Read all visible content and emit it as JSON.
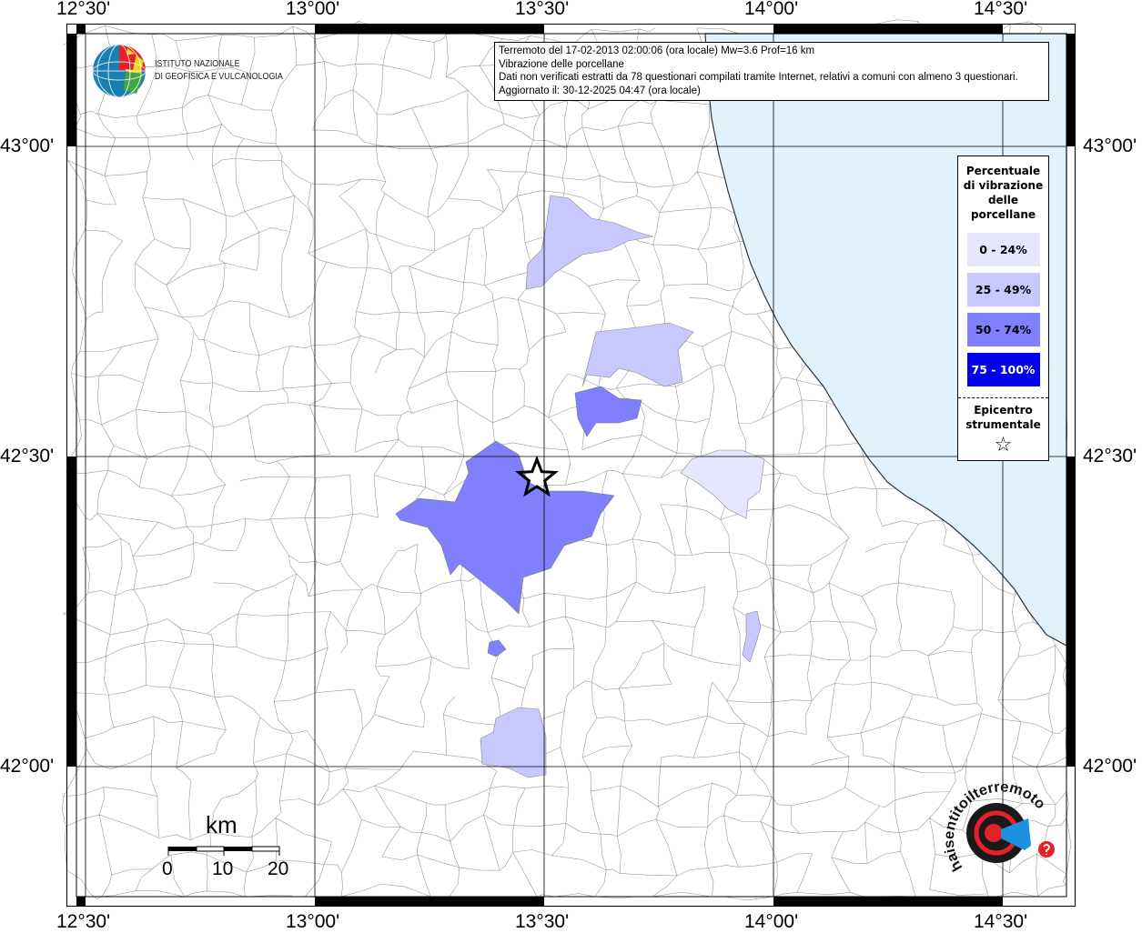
{
  "info_box": {
    "line1": "Terremoto del 17-02-2013 02:00:06 (ora locale) Mw=3.6 Prof=16 km",
    "line2": "Vibrazione delle porcellane",
    "line3": "Dati non verificati estratti da 78 questionari compilati tramite Internet, relativi a comuni con almeno 3 questionari.",
    "line4": "Aggiornato il: 30-12-2025 04:47 (ora locale)"
  },
  "logo_ingv": {
    "line1": "ISTITUTO NAZIONALE",
    "line2": "DI GEOFISICA E VULCANOLOGIA"
  },
  "logo_hsit": {
    "text": "www.haisentitoilterremoto.it"
  },
  "axes": {
    "lon_labels": [
      "12°30'",
      "13°00'",
      "13°30'",
      "14°00'",
      "14°30'"
    ],
    "lat_labels": [
      "43°00'",
      "42°30'",
      "42°00'"
    ]
  },
  "legend": {
    "title_lines": [
      "Percentuale",
      "di vibrazione",
      "delle",
      "porcellane"
    ],
    "classes": [
      {
        "label": "0 - 24%",
        "color": "#e6e6fe",
        "text_color": "#000000"
      },
      {
        "label": "25 - 49%",
        "color": "#c8c8fe",
        "text_color": "#000000"
      },
      {
        "label": "50 - 74%",
        "color": "#8080fe",
        "text_color": "#000000"
      },
      {
        "label": "75 - 100%",
        "color": "#0000ee",
        "text_color": "#ffffff"
      }
    ],
    "epicenter_lines": [
      "Epicentro",
      "strumentale"
    ],
    "epicenter_symbol": "☆"
  },
  "scale_bar": {
    "unit": "km",
    "ticks": [
      "0",
      "10",
      "20"
    ]
  },
  "colors": {
    "sea": "#e1f2fd",
    "boundaries": "#9a9a9a",
    "grid": "#000000"
  }
}
